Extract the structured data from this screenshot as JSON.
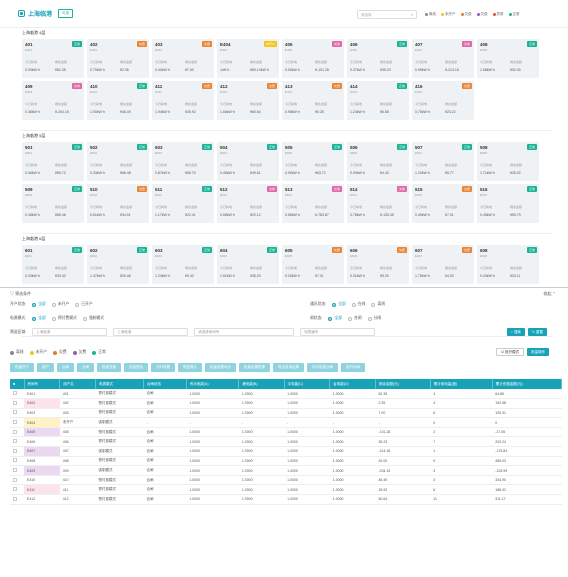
{
  "header": {
    "title": "上海临港",
    "badge": "可用",
    "select_placeholder": "请选择"
  },
  "legend": [
    {
      "label": "离线",
      "color": "#8a8a8a"
    },
    {
      "label": "未开户",
      "color": "#f5c518"
    },
    {
      "label": "欠费",
      "color": "#e67e22"
    },
    {
      "label": "欠费",
      "color": "#9b59b6"
    },
    {
      "label": "异常",
      "color": "#e74c3c"
    },
    {
      "label": "正常",
      "color": "#1ab394"
    }
  ],
  "status_colors": {
    "正常": "#1ab394",
    "未开户": "#f5c518",
    "欠费": "#e8863a",
    "欠停": "#e06aa8"
  },
  "labels": {
    "power": "今日耗电",
    "balance": "剩余金额"
  },
  "floors": [
    {
      "name": "上海临港 4层",
      "rooms": [
        {
          "n": "401",
          "c": "E401",
          "s": "正常",
          "p": "0.00kW·h",
          "b": "¥62.35"
        },
        {
          "n": "402",
          "c": "E402",
          "s": "欠费",
          "p": "0.70kW·h",
          "b": "¥2.35"
        },
        {
          "n": "403",
          "c": "E403",
          "s": "欠费",
          "p": "0.40kW·h",
          "b": "¥7.00"
        },
        {
          "n": "E404",
          "c": "E404",
          "s": "未开户",
          "p": "-kW·h",
          "b": "¥80.14kW·h"
        },
        {
          "n": "405",
          "c": "E405",
          "s": "欠停",
          "p": "0.00kW·h",
          "b": "¥-101.28"
        },
        {
          "n": "406",
          "c": "E406",
          "s": "正常",
          "p": "0.37kW·h",
          "b": "¥35.23"
        },
        {
          "n": "407",
          "c": "E407",
          "s": "欠停",
          "p": "0.95kW·h",
          "b": "¥-214.16"
        },
        {
          "n": "408",
          "c": "E408",
          "s": "正常",
          "p": "1.58kW·h",
          "b": "¥92.00"
        },
        {
          "n": "409",
          "c": "E409",
          "s": "欠停",
          "p": "0.38kW·h",
          "b": "¥-204.15"
        },
        {
          "n": "410",
          "c": "E410",
          "s": "正常",
          "p": "1.90kW·h",
          "b": "¥46.49"
        },
        {
          "n": "411",
          "c": "E411",
          "s": "欠费",
          "p": "1.94kW·h",
          "b": "¥25.92"
        },
        {
          "n": "412",
          "c": "E412",
          "s": "欠费",
          "p": "1.66kW·h",
          "b": "¥60.64"
        },
        {
          "n": "413",
          "c": "E413",
          "s": "欠费",
          "p": "0.98kW·h",
          "b": "¥0.25"
        },
        {
          "n": "414",
          "c": "E414",
          "s": "正常",
          "p": "1.23kW·h",
          "b": "¥6.58"
        },
        {
          "n": "416",
          "c": "E416",
          "s": "欠费",
          "p": "0.75kW·h",
          "b": "¥23.22"
        }
      ]
    },
    {
      "name": "上海临港 5层",
      "rooms": [
        {
          "n": "501",
          "c": "E501",
          "s": "正常",
          "p": "0.46kW·h",
          "b": "¥59.72"
        },
        {
          "n": "502",
          "c": "E502",
          "s": "正常",
          "p": "0.33kW·h",
          "b": "¥66.48"
        },
        {
          "n": "503",
          "c": "E503",
          "s": "正常",
          "p": "0.87kW·h",
          "b": "¥65.70"
        },
        {
          "n": "504",
          "c": "E504",
          "s": "正常",
          "p": "0.45kW·h",
          "b": "¥49.81"
        },
        {
          "n": "505",
          "c": "E505",
          "s": "正常",
          "p": "0.90kW·h",
          "b": "¥63.72"
        },
        {
          "n": "506",
          "c": "E506",
          "s": "正常",
          "p": "0.09kW·h",
          "b": "¥4.43"
        },
        {
          "n": "507",
          "c": "E507",
          "s": "正常",
          "p": "1.29kW·h",
          "b": "¥5.77"
        },
        {
          "n": "508",
          "c": "E508",
          "s": "正常",
          "p": "1.71kW·h",
          "b": "¥25.02"
        },
        {
          "n": "509",
          "c": "E509",
          "s": "正常",
          "p": "0.48kW·h",
          "b": "¥65.46"
        },
        {
          "n": "510",
          "c": "E510",
          "s": "欠费",
          "p": "0.61kW·h",
          "b": "¥34.91"
        },
        {
          "n": "511",
          "c": "E511",
          "s": "正常",
          "p": "1.17kW·h",
          "b": "¥22.41"
        },
        {
          "n": "512",
          "c": "E512",
          "s": "欠停",
          "p": "0.58kW·h",
          "b": "¥22.12"
        },
        {
          "n": "513",
          "c": "E513",
          "s": "欠停",
          "p": "0.56kW·h",
          "b": "¥-783.87"
        },
        {
          "n": "514",
          "c": "E514",
          "s": "欠停",
          "p": "0.78kW·h",
          "b": "¥-135.45"
        },
        {
          "n": "515",
          "c": "E515",
          "s": "欠费",
          "p": "0.45kW·h",
          "b": "¥7.01"
        },
        {
          "n": "516",
          "c": "E516",
          "s": "正常",
          "p": "0.45kW·h",
          "b": "¥50.79"
        }
      ]
    },
    {
      "name": "上海临港 6层",
      "rooms": [
        {
          "n": "601",
          "c": "E601",
          "s": "正常",
          "p": "0.43kW·h",
          "b": "¥33.32"
        },
        {
          "n": "602",
          "c": "E602",
          "s": "正常",
          "p": "1.47kW·h",
          "b": "¥29.46"
        },
        {
          "n": "603",
          "c": "E603",
          "s": "正常",
          "p": "1.24kW·h",
          "b": "¥9.42"
        },
        {
          "n": "604",
          "c": "E604",
          "s": "正常",
          "p": "1.51kW·h",
          "b": "¥35.20"
        },
        {
          "n": "605",
          "c": "E605",
          "s": "欠费",
          "p": "0.25kW·h",
          "b": "¥7.01"
        },
        {
          "n": "606",
          "c": "E606",
          "s": "欠费",
          "p": "0.31kW·h",
          "b": "¥5.20"
        },
        {
          "n": "607",
          "c": "E607",
          "s": "欠费",
          "p": "1.75kW·h",
          "b": "¥4.92"
        },
        {
          "n": "608",
          "c": "E608",
          "s": "正常",
          "p": "0.43kW·h",
          "b": "¥33.11"
        }
      ]
    }
  ],
  "filter": {
    "title": "筛选条件",
    "collapse": "收起",
    "open_label": "开户状态:",
    "open_opts": [
      "全部",
      "未开户",
      "已开户"
    ],
    "comm_label": "通讯状态:",
    "comm_opts": [
      "全部",
      "在线",
      "离线"
    ],
    "mode_label": "电源模式:",
    "mode_opts": [
      "全部",
      "预付费模式",
      "强制模式"
    ],
    "gate_label": "闸状态:",
    "gate_opts": [
      "全部",
      "合闸",
      "分闸"
    ],
    "area_label": "筛选区域:",
    "area1": "上海临港",
    "area2": "上海临港",
    "room_ph": "请选择房间号",
    "meter_ph": "电表编号",
    "search": "搜索",
    "reset": "重置",
    "flags": [
      "离线",
      "未开户",
      "欠费",
      "欠费",
      "正常"
    ],
    "batch_mode": "批开模式",
    "batch_op": "批量操作",
    "toolbar": [
      "批量开户",
      "销户",
      "合闸",
      "分闸",
      "批量充值",
      "批量退费",
      "分时设置",
      "恢复默认",
      "批量设置电价",
      "批量设置阶梯",
      "导出查询结果",
      "定时批量分闸",
      "定时合闸"
    ]
  },
  "table": {
    "headers": [
      "房间号",
      "用户名",
      "电表模式",
      "合闸状态",
      "有功电能(A)",
      "峰电能(B)",
      "平电能(C)",
      "谷电能(D)",
      "剩余金额(元)",
      "累计用电量(度)",
      "累计充值金额(元)"
    ],
    "rows": [
      [
        "E401",
        "401",
        "预付费模式",
        "合闸",
        "1.0000",
        "1.0000",
        "1.0000",
        "1.0000",
        "62.35",
        "4",
        "64.86"
      ],
      [
        "E402",
        "402",
        "预付费模式",
        "合闸",
        "1.0000",
        "1.0000",
        "1.0000",
        "1.0000",
        "2.35",
        "4",
        "152.58"
      ],
      [
        "E403",
        "403",
        "预付费模式",
        "合闸",
        "1.0000",
        "1.0000",
        "1.0000",
        "1.0000",
        "7.00",
        "6",
        "105.31"
      ],
      [
        "E404",
        "未开户",
        "强制模式",
        "-",
        "-",
        "-",
        "-",
        "-",
        "-",
        "0",
        "0"
      ],
      [
        "E405",
        "405",
        "预付费模式",
        "合闸",
        "1.0000",
        "1.0000",
        "1.0000",
        "1.0000",
        "-101.28",
        "2",
        "-17.06"
      ],
      [
        "E406",
        "406",
        "预付费模式",
        "合闸",
        "1.0000",
        "1.0000",
        "1.0000",
        "1.0000",
        "35.23",
        "7",
        "203.24"
      ],
      [
        "E407",
        "407",
        "强制模式",
        "合闸",
        "1.0000",
        "1.0000",
        "1.0000",
        "1.0000",
        "-214.16",
        "1",
        "-175.84"
      ],
      [
        "E408",
        "408",
        "预付费模式",
        "合闸",
        "1.0000",
        "1.0000",
        "1.0000",
        "1.0000",
        "92.00",
        "9",
        "485.03"
      ],
      [
        "E409",
        "409",
        "强制模式",
        "合闸",
        "1.0000",
        "1.0000",
        "1.0000",
        "1.0000",
        "-204.15",
        "3",
        "-125.99"
      ],
      [
        "E410",
        "410",
        "预付费模式",
        "合闸",
        "1.0000",
        "1.0000",
        "1.0000",
        "1.0000",
        "46.49",
        "3",
        "334.90"
      ],
      [
        "E411",
        "411",
        "预付费模式",
        "合闸",
        "1.0000",
        "1.0000",
        "1.0000",
        "1.0000",
        "25.92",
        "6",
        "186.42"
      ],
      [
        "E412",
        "412",
        "预付费模式",
        "合闸",
        "1.0000",
        "1.0000",
        "1.0000",
        "1.0000",
        "60.64",
        "11",
        "311.17"
      ]
    ],
    "row_colors": [
      "",
      "#fde3ea",
      "",
      "#fff3c4",
      "#ead9f0",
      "",
      "#ead9f0",
      "",
      "#ead9f0",
      "",
      "#fde3ea",
      ""
    ]
  }
}
